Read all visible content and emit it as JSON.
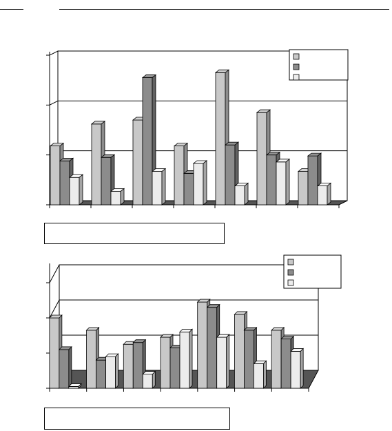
{
  "chart_data": [
    {
      "type": "bar",
      "style": "3d-clustered-column",
      "categories": [
        "",
        "",
        "",
        "",
        "",
        "",
        ""
      ],
      "series": [
        {
          "color": "#c8c8c8",
          "values": [
            1.18,
            1.62,
            1.7,
            1.18,
            2.65,
            1.85,
            0.67
          ]
        },
        {
          "color": "#8c8c8c",
          "values": [
            0.88,
            0.95,
            2.55,
            0.63,
            1.2,
            1.0,
            0.98
          ]
        },
        {
          "color": "#ececec",
          "values": [
            0.55,
            0.27,
            0.67,
            0.83,
            0.38,
            0.86,
            0.38
          ]
        }
      ],
      "ylim": [
        0,
        3
      ],
      "grid": true,
      "legend_position": "top-right",
      "legend_entries": [
        "",
        "",
        ""
      ],
      "caption": ""
    },
    {
      "type": "bar",
      "style": "3d-clustered-column",
      "categories": [
        "",
        "",
        "",
        "",
        "",
        "",
        ""
      ],
      "series": [
        {
          "color": "#c8c8c8",
          "values": [
            2.0,
            1.65,
            1.25,
            1.45,
            2.45,
            2.1,
            1.65
          ]
        },
        {
          "color": "#8c8c8c",
          "values": [
            1.1,
            0.8,
            1.3,
            1.15,
            2.3,
            1.65,
            1.4
          ]
        },
        {
          "color": "#ececec",
          "values": [
            0.05,
            0.9,
            0.4,
            1.6,
            1.45,
            0.7,
            1.05
          ]
        }
      ],
      "ylim": [
        0,
        3
      ],
      "grid": true,
      "legend_position": "top-right",
      "legend_entries": [
        "",
        "",
        ""
      ],
      "caption": ""
    }
  ]
}
